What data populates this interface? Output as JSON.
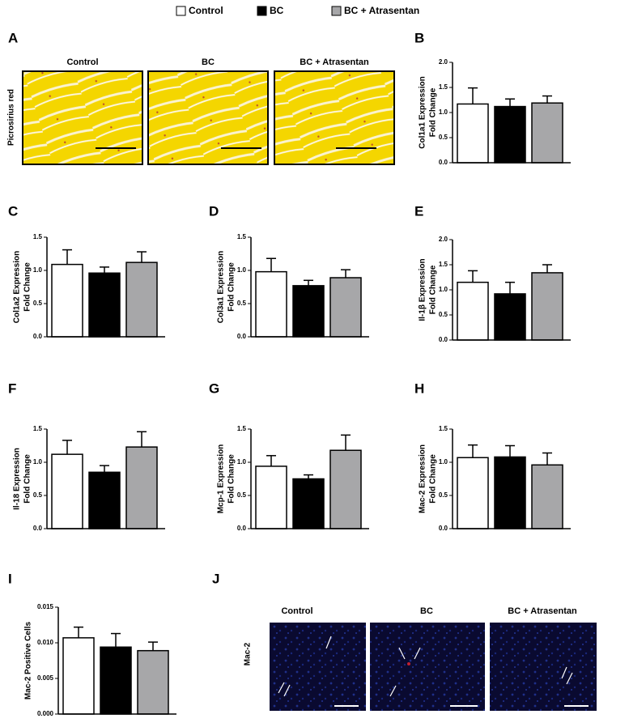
{
  "legend": [
    {
      "label": "Control",
      "color": "#ffffff"
    },
    {
      "label": "BC",
      "color": "#000000"
    },
    {
      "label": "BC + Atrasentan",
      "color": "#a7a7a9"
    }
  ],
  "histology": {
    "panel_label": "A",
    "stain_label": "Picrosirius red",
    "titles": [
      "Control",
      "BC",
      "BC + Atrasentan"
    ]
  },
  "immunostaining": {
    "panel_label": "J",
    "stain_label": "Mac-2",
    "titles": [
      "Control",
      "BC",
      "BC + Atrasentan"
    ]
  },
  "chart_data": [
    {
      "type": "bar",
      "panel_label": "B",
      "ylabel": [
        "Col1a1 Expression",
        "Fold Change"
      ],
      "values": [
        1.17,
        1.12,
        1.19
      ],
      "errors": [
        0.32,
        0.15,
        0.14
      ],
      "ylim": [
        0,
        2
      ],
      "yticks": [
        {
          "value": 0,
          "label": "0.0"
        },
        0.5,
        {
          "value": 1,
          "label": "1.0"
        },
        1.5,
        {
          "value": 2,
          "label": "2.0"
        }
      ]
    },
    {
      "type": "bar",
      "panel_label": "C",
      "ylabel": [
        "Col1a2 Expression",
        "Fold Change"
      ],
      "values": [
        1.09,
        0.96,
        1.12
      ],
      "errors": [
        0.22,
        0.09,
        0.16
      ],
      "ylim": [
        0,
        1.5
      ],
      "yticks": [
        {
          "value": 0,
          "label": "0.0"
        },
        0.5,
        {
          "value": 1,
          "label": "1.0"
        },
        1.5
      ]
    },
    {
      "type": "bar",
      "panel_label": "D",
      "ylabel": [
        "Col3a1 Expression",
        "Fold Change"
      ],
      "values": [
        0.98,
        0.77,
        0.89
      ],
      "errors": [
        0.2,
        0.08,
        0.12
      ],
      "ylim": [
        0,
        1.5
      ],
      "yticks": [
        {
          "value": 0,
          "label": "0.0"
        },
        0.5,
        {
          "value": 1,
          "label": "1.0"
        },
        1.5
      ]
    },
    {
      "type": "bar",
      "panel_label": "E",
      "ylabel": [
        "Il-1β Expression",
        "Fold Change"
      ],
      "values": [
        1.15,
        0.92,
        1.34
      ],
      "errors": [
        0.23,
        0.23,
        0.16
      ],
      "ylim": [
        0,
        2
      ],
      "yticks": [
        {
          "value": 0,
          "label": "0.0"
        },
        0.5,
        {
          "value": 1,
          "label": "1.0"
        },
        1.5,
        {
          "value": 2,
          "label": "2.0"
        }
      ]
    },
    {
      "type": "bar",
      "panel_label": "F",
      "ylabel": [
        "Il-18 Expression",
        "Fold Change"
      ],
      "values": [
        1.12,
        0.85,
        1.23
      ],
      "errors": [
        0.21,
        0.1,
        0.23
      ],
      "ylim": [
        0,
        1.5
      ],
      "yticks": [
        {
          "value": 0,
          "label": "0.0"
        },
        0.5,
        {
          "value": 1,
          "label": "1.0"
        },
        1.5
      ]
    },
    {
      "type": "bar",
      "panel_label": "G",
      "ylabel": [
        "Mcp-1 Expression",
        "Fold Change"
      ],
      "values": [
        0.94,
        0.75,
        1.18
      ],
      "errors": [
        0.16,
        0.06,
        0.23
      ],
      "ylim": [
        0,
        1.5
      ],
      "yticks": [
        {
          "value": 0,
          "label": "0.0"
        },
        0.5,
        {
          "value": 1,
          "label": "1.0"
        },
        1.5
      ]
    },
    {
      "type": "bar",
      "panel_label": "H",
      "ylabel": [
        "Mac-2 Expression",
        "Fold Change"
      ],
      "values": [
        1.07,
        1.08,
        0.96
      ],
      "errors": [
        0.19,
        0.17,
        0.18
      ],
      "ylim": [
        0,
        1.5
      ],
      "yticks": [
        {
          "value": 0,
          "label": "0.0"
        },
        0.5,
        {
          "value": 1,
          "label": "1.0"
        },
        1.5
      ]
    },
    {
      "type": "bar",
      "panel_label": "I",
      "ylabel": [
        "Mac-2 Positive Cells"
      ],
      "values": [
        0.0107,
        0.0094,
        0.0089
      ],
      "errors": [
        0.0015,
        0.0019,
        0.0012
      ],
      "ylim": [
        0,
        0.015
      ],
      "yticks": [
        {
          "value": 0,
          "label": "0.000"
        },
        0.005,
        {
          "value": 0.01,
          "label": "0.010"
        },
        0.015
      ]
    }
  ]
}
